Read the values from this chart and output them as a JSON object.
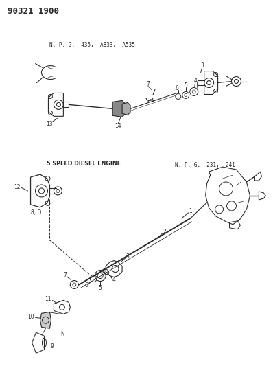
{
  "title": "90321 1900",
  "bg_color": "#ffffff",
  "ink_color": "#2a2a2a",
  "label_npg_top": "N. P. G.  435,  A833,  A535",
  "label_npg_bottom": "N. P. G.  231,  241",
  "label_diesel": "5 SPEED DIESEL ENGINE",
  "label_8d": "8, D",
  "label_n": "N",
  "figsize": [
    3.98,
    5.33
  ],
  "dpi": 100
}
